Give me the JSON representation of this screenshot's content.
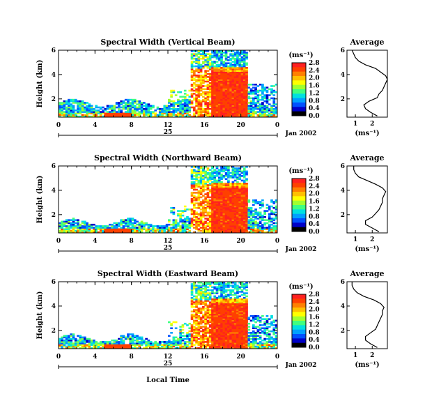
{
  "figure": {
    "x_axis_title": "Local Time",
    "date_label": "Jan 2002",
    "day_label": "25",
    "colorbar_unit": "(ms⁻¹)",
    "average_title": "Average",
    "average_unit": "(ms⁻¹)",
    "height_label": "Height (km)"
  },
  "colors": {
    "scale": [
      "#000000",
      "#0000c8",
      "#0050ff",
      "#00a0ff",
      "#00e0e0",
      "#40ff80",
      "#a0ff30",
      "#ffff00",
      "#ffc000",
      "#ff8000",
      "#ff4000",
      "#ff2020"
    ],
    "line": "#000000"
  },
  "chart_data": [
    {
      "type": "heatmap",
      "title": "Spectral Width (Vertical Beam)",
      "xlabel": "Local Time",
      "ylabel": "Height (km)",
      "x_ticks": [
        "0",
        "4",
        "8",
        "12",
        "16",
        "20",
        "0"
      ],
      "y_ticks": [
        "2",
        "4",
        "6"
      ],
      "xlim": [
        0,
        24
      ],
      "ylim": [
        0.5,
        6
      ],
      "colorbar": {
        "ticks": [
          "0.0",
          "0.4",
          "0.8",
          "1.2",
          "1.6",
          "2.0",
          "2.4",
          "2.8"
        ],
        "range": [
          0,
          2.8
        ],
        "unit": "(ms⁻¹)"
      },
      "average": {
        "title": "Average",
        "xlabel": "(ms⁻¹)",
        "x_ticks": [
          "1",
          "2"
        ],
        "y_ticks": [
          "2",
          "4",
          "6"
        ],
        "xlim": [
          0.5,
          2.9
        ],
        "ylim": [
          0.5,
          6
        ],
        "height": [
          0.6,
          0.9,
          1.2,
          1.5,
          1.8,
          2.1,
          2.4,
          2.7,
          3.0,
          3.3,
          3.6,
          3.9,
          4.2,
          4.5,
          4.8,
          5.1,
          5.4,
          5.7,
          6.0
        ],
        "width": [
          2.3,
          1.9,
          1.6,
          1.5,
          1.8,
          2.3,
          2.4,
          2.6,
          2.7,
          2.8,
          2.9,
          2.8,
          2.5,
          2.2,
          1.6,
          1.2,
          1.0,
          0.9,
          0.8
        ]
      }
    },
    {
      "type": "heatmap",
      "title": "Spectral Width (Northward Beam)",
      "xlabel": "Local Time",
      "ylabel": "Height (km)",
      "x_ticks": [
        "0",
        "4",
        "8",
        "12",
        "16",
        "20",
        "0"
      ],
      "y_ticks": [
        "2",
        "4",
        "6"
      ],
      "xlim": [
        0,
        24
      ],
      "ylim": [
        0.5,
        6
      ],
      "colorbar": {
        "ticks": [
          "0.0",
          "0.4",
          "0.8",
          "1.2",
          "1.6",
          "2.0",
          "2.4",
          "2.8"
        ],
        "range": [
          0,
          2.8
        ],
        "unit": "(ms⁻¹)"
      },
      "average": {
        "title": "Average",
        "xlabel": "(ms⁻¹)",
        "x_ticks": [
          "1",
          "2"
        ],
        "y_ticks": [
          "2",
          "4",
          "6"
        ],
        "xlim": [
          0.5,
          2.9
        ],
        "ylim": [
          0.5,
          6
        ],
        "height": [
          0.6,
          0.9,
          1.2,
          1.5,
          1.8,
          2.1,
          2.4,
          2.7,
          3.0,
          3.3,
          3.6,
          3.9,
          4.2,
          4.5,
          4.8,
          5.1,
          5.4,
          5.7,
          6.0
        ],
        "width": [
          2.4,
          2.0,
          1.6,
          1.6,
          2.0,
          2.2,
          2.4,
          2.5,
          2.6,
          2.6,
          2.7,
          2.8,
          2.6,
          2.2,
          1.7,
          1.2,
          1.0,
          0.9,
          0.9
        ]
      }
    },
    {
      "type": "heatmap",
      "title": "Spectral Width (Eastward Beam)",
      "xlabel": "Local Time",
      "ylabel": "Height (km)",
      "x_ticks": [
        "0",
        "4",
        "8",
        "12",
        "16",
        "20",
        "0"
      ],
      "y_ticks": [
        "2",
        "4",
        "6"
      ],
      "xlim": [
        0,
        24
      ],
      "ylim": [
        0.5,
        6
      ],
      "colorbar": {
        "ticks": [
          "0.0",
          "0.4",
          "0.8",
          "1.2",
          "1.6",
          "2.0",
          "2.4",
          "2.8"
        ],
        "range": [
          0,
          2.8
        ],
        "unit": "(ms⁻¹)"
      },
      "average": {
        "title": "Average",
        "xlabel": "(ms⁻¹)",
        "x_ticks": [
          "1",
          "2"
        ],
        "y_ticks": [
          "2",
          "4",
          "6"
        ],
        "xlim": [
          0.5,
          2.9
        ],
        "ylim": [
          0.5,
          6
        ],
        "height": [
          0.6,
          0.9,
          1.2,
          1.5,
          1.8,
          2.1,
          2.4,
          2.7,
          3.0,
          3.3,
          3.6,
          3.9,
          4.2,
          4.5,
          4.8,
          5.1,
          5.4,
          5.7,
          6.0
        ],
        "width": [
          2.3,
          1.9,
          1.6,
          1.6,
          1.9,
          2.2,
          2.3,
          2.4,
          2.5,
          2.6,
          2.6,
          2.7,
          2.5,
          2.1,
          1.5,
          1.1,
          0.9,
          0.8,
          0.8
        ]
      }
    }
  ]
}
